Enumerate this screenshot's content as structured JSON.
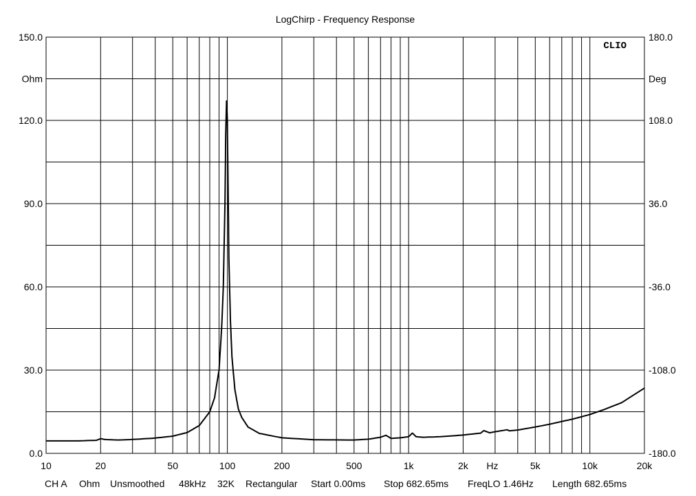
{
  "chart_data": {
    "type": "line",
    "title": "LogChirp - Frequency Response",
    "brand": "CLIO",
    "x_unit": "Hz",
    "x_scale": "log",
    "xlim": [
      10,
      20000
    ],
    "x_tick_labels": [
      {
        "value": 10,
        "label": "10"
      },
      {
        "value": 20,
        "label": "20"
      },
      {
        "value": 50,
        "label": "50"
      },
      {
        "value": 100,
        "label": "100"
      },
      {
        "value": 200,
        "label": "200"
      },
      {
        "value": 500,
        "label": "500"
      },
      {
        "value": 1000,
        "label": "1k"
      },
      {
        "value": 2000,
        "label": "2k"
      },
      {
        "value": 5000,
        "label": "5k"
      },
      {
        "value": 10000,
        "label": "10k"
      },
      {
        "value": 20000,
        "label": "20k"
      }
    ],
    "y_left": {
      "unit": "Ohm",
      "ylim": [
        0,
        150
      ],
      "tick_labels": [
        {
          "value": 0,
          "label": "0.0"
        },
        {
          "value": 30,
          "label": "30.0"
        },
        {
          "value": 60,
          "label": "60.0"
        },
        {
          "value": 90,
          "label": "90.0"
        },
        {
          "value": 120,
          "label": "120.0"
        },
        {
          "value": 150,
          "label": "150.0"
        }
      ]
    },
    "y_right": {
      "unit": "Deg",
      "ylim": [
        -180,
        180
      ],
      "tick_labels": [
        {
          "value": -180,
          "label": "-180.0"
        },
        {
          "value": -108,
          "label": "-108.0"
        },
        {
          "value": -36,
          "label": "-36.0"
        },
        {
          "value": 36,
          "label": "36.0"
        },
        {
          "value": 108,
          "label": "108.0"
        },
        {
          "value": 180,
          "label": "180.0"
        }
      ]
    },
    "grid": true,
    "series": [
      {
        "color": "#000000",
        "x": [
          10,
          15,
          19,
          20,
          21,
          25,
          30,
          40,
          50,
          60,
          70,
          80,
          85,
          90,
          93,
          95,
          97,
          98,
          99,
          100,
          101,
          102,
          104,
          106,
          110,
          115,
          120,
          130,
          150,
          200,
          300,
          500,
          600,
          700,
          750,
          800,
          900,
          1000,
          1050,
          1100,
          1200,
          1500,
          2000,
          2500,
          2600,
          2800,
          3000,
          3500,
          3600,
          4000,
          5000,
          6000,
          7000,
          8000,
          10000,
          12000,
          15000,
          20000
        ],
        "y": [
          4.5,
          4.5,
          4.7,
          5.3,
          5.0,
          4.8,
          5.0,
          5.5,
          6.2,
          7.5,
          10,
          15,
          20,
          30,
          45,
          60,
          90,
          115,
          127,
          120,
          95,
          70,
          48,
          35,
          23,
          16,
          13,
          9.5,
          7.2,
          5.6,
          4.9,
          4.8,
          5.1,
          5.8,
          6.5,
          5.4,
          5.6,
          6.0,
          7.3,
          6.0,
          5.8,
          6.0,
          6.6,
          7.3,
          8.2,
          7.4,
          7.8,
          8.5,
          8.1,
          8.4,
          9.5,
          10.5,
          11.5,
          12.3,
          14,
          15.8,
          18.3,
          23.5
        ]
      }
    ]
  },
  "footer": {
    "channel": "CH A",
    "unit": "Ohm",
    "smoothing": "Unsmoothed",
    "sample_rate": "48kHz",
    "fft_size": "32K",
    "window": "Rectangular",
    "start": "Start 0.00ms",
    "stop": "Stop 682.65ms",
    "freq_lo": "FreqLO 1.46Hz",
    "length": "Length 682.65ms"
  }
}
